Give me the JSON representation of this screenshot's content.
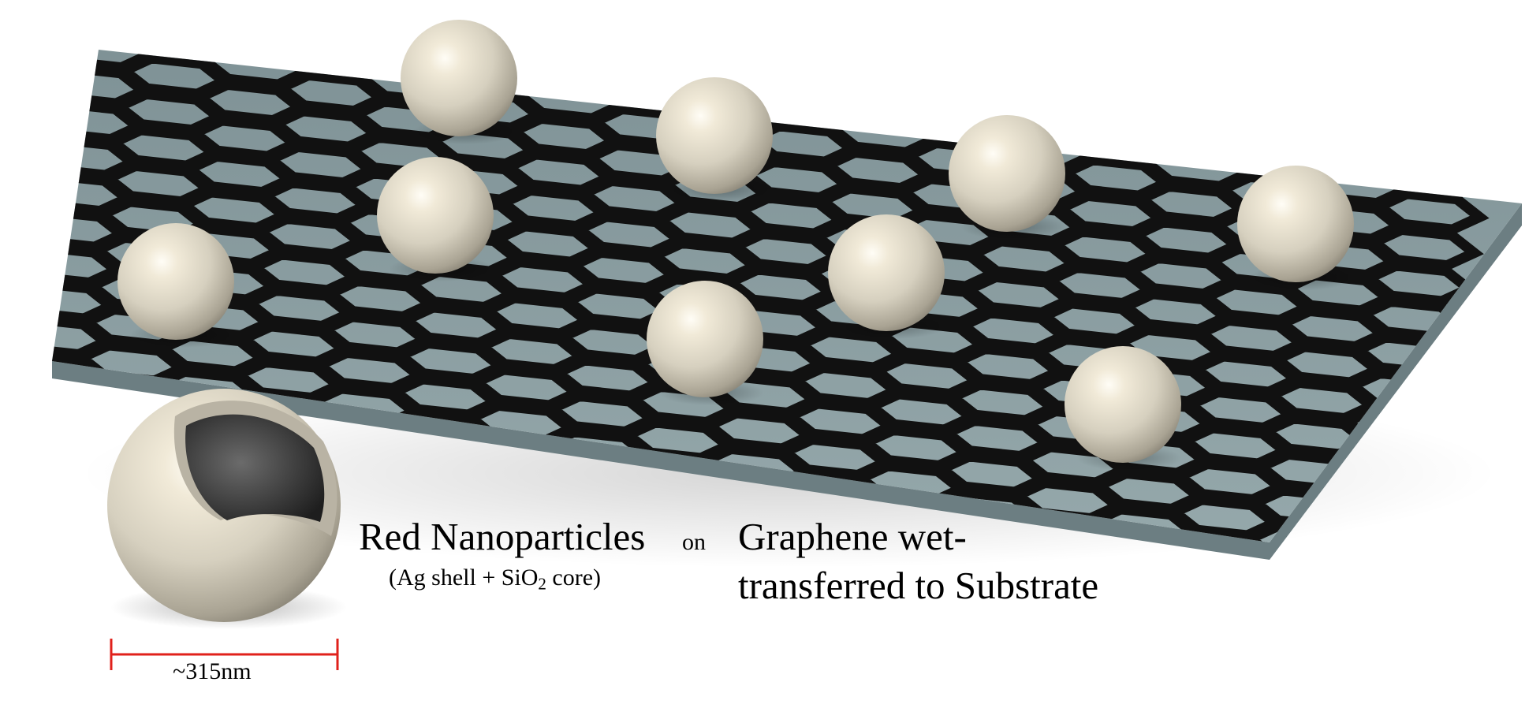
{
  "labels": {
    "nanoparticles": "Red Nanoparticles",
    "composition_prefix": "(Ag shell + SiO",
    "composition_sub": "2",
    "composition_suffix": " core)",
    "on": "on",
    "substrate_line1": "Graphene wet-",
    "substrate_line2": "transferred to Substrate",
    "scale": "~315nm"
  },
  "colors": {
    "substrate": "#8a9ea2",
    "substrate_edge": "#6f8286",
    "lattice": "#111111",
    "sphere_highlight": "#fbf7ec",
    "sphere_mid": "#d9d3c2",
    "sphere_dark": "#8f8a7c",
    "core": "#3b3b3b",
    "scale_bar": "#e0211b"
  }
}
